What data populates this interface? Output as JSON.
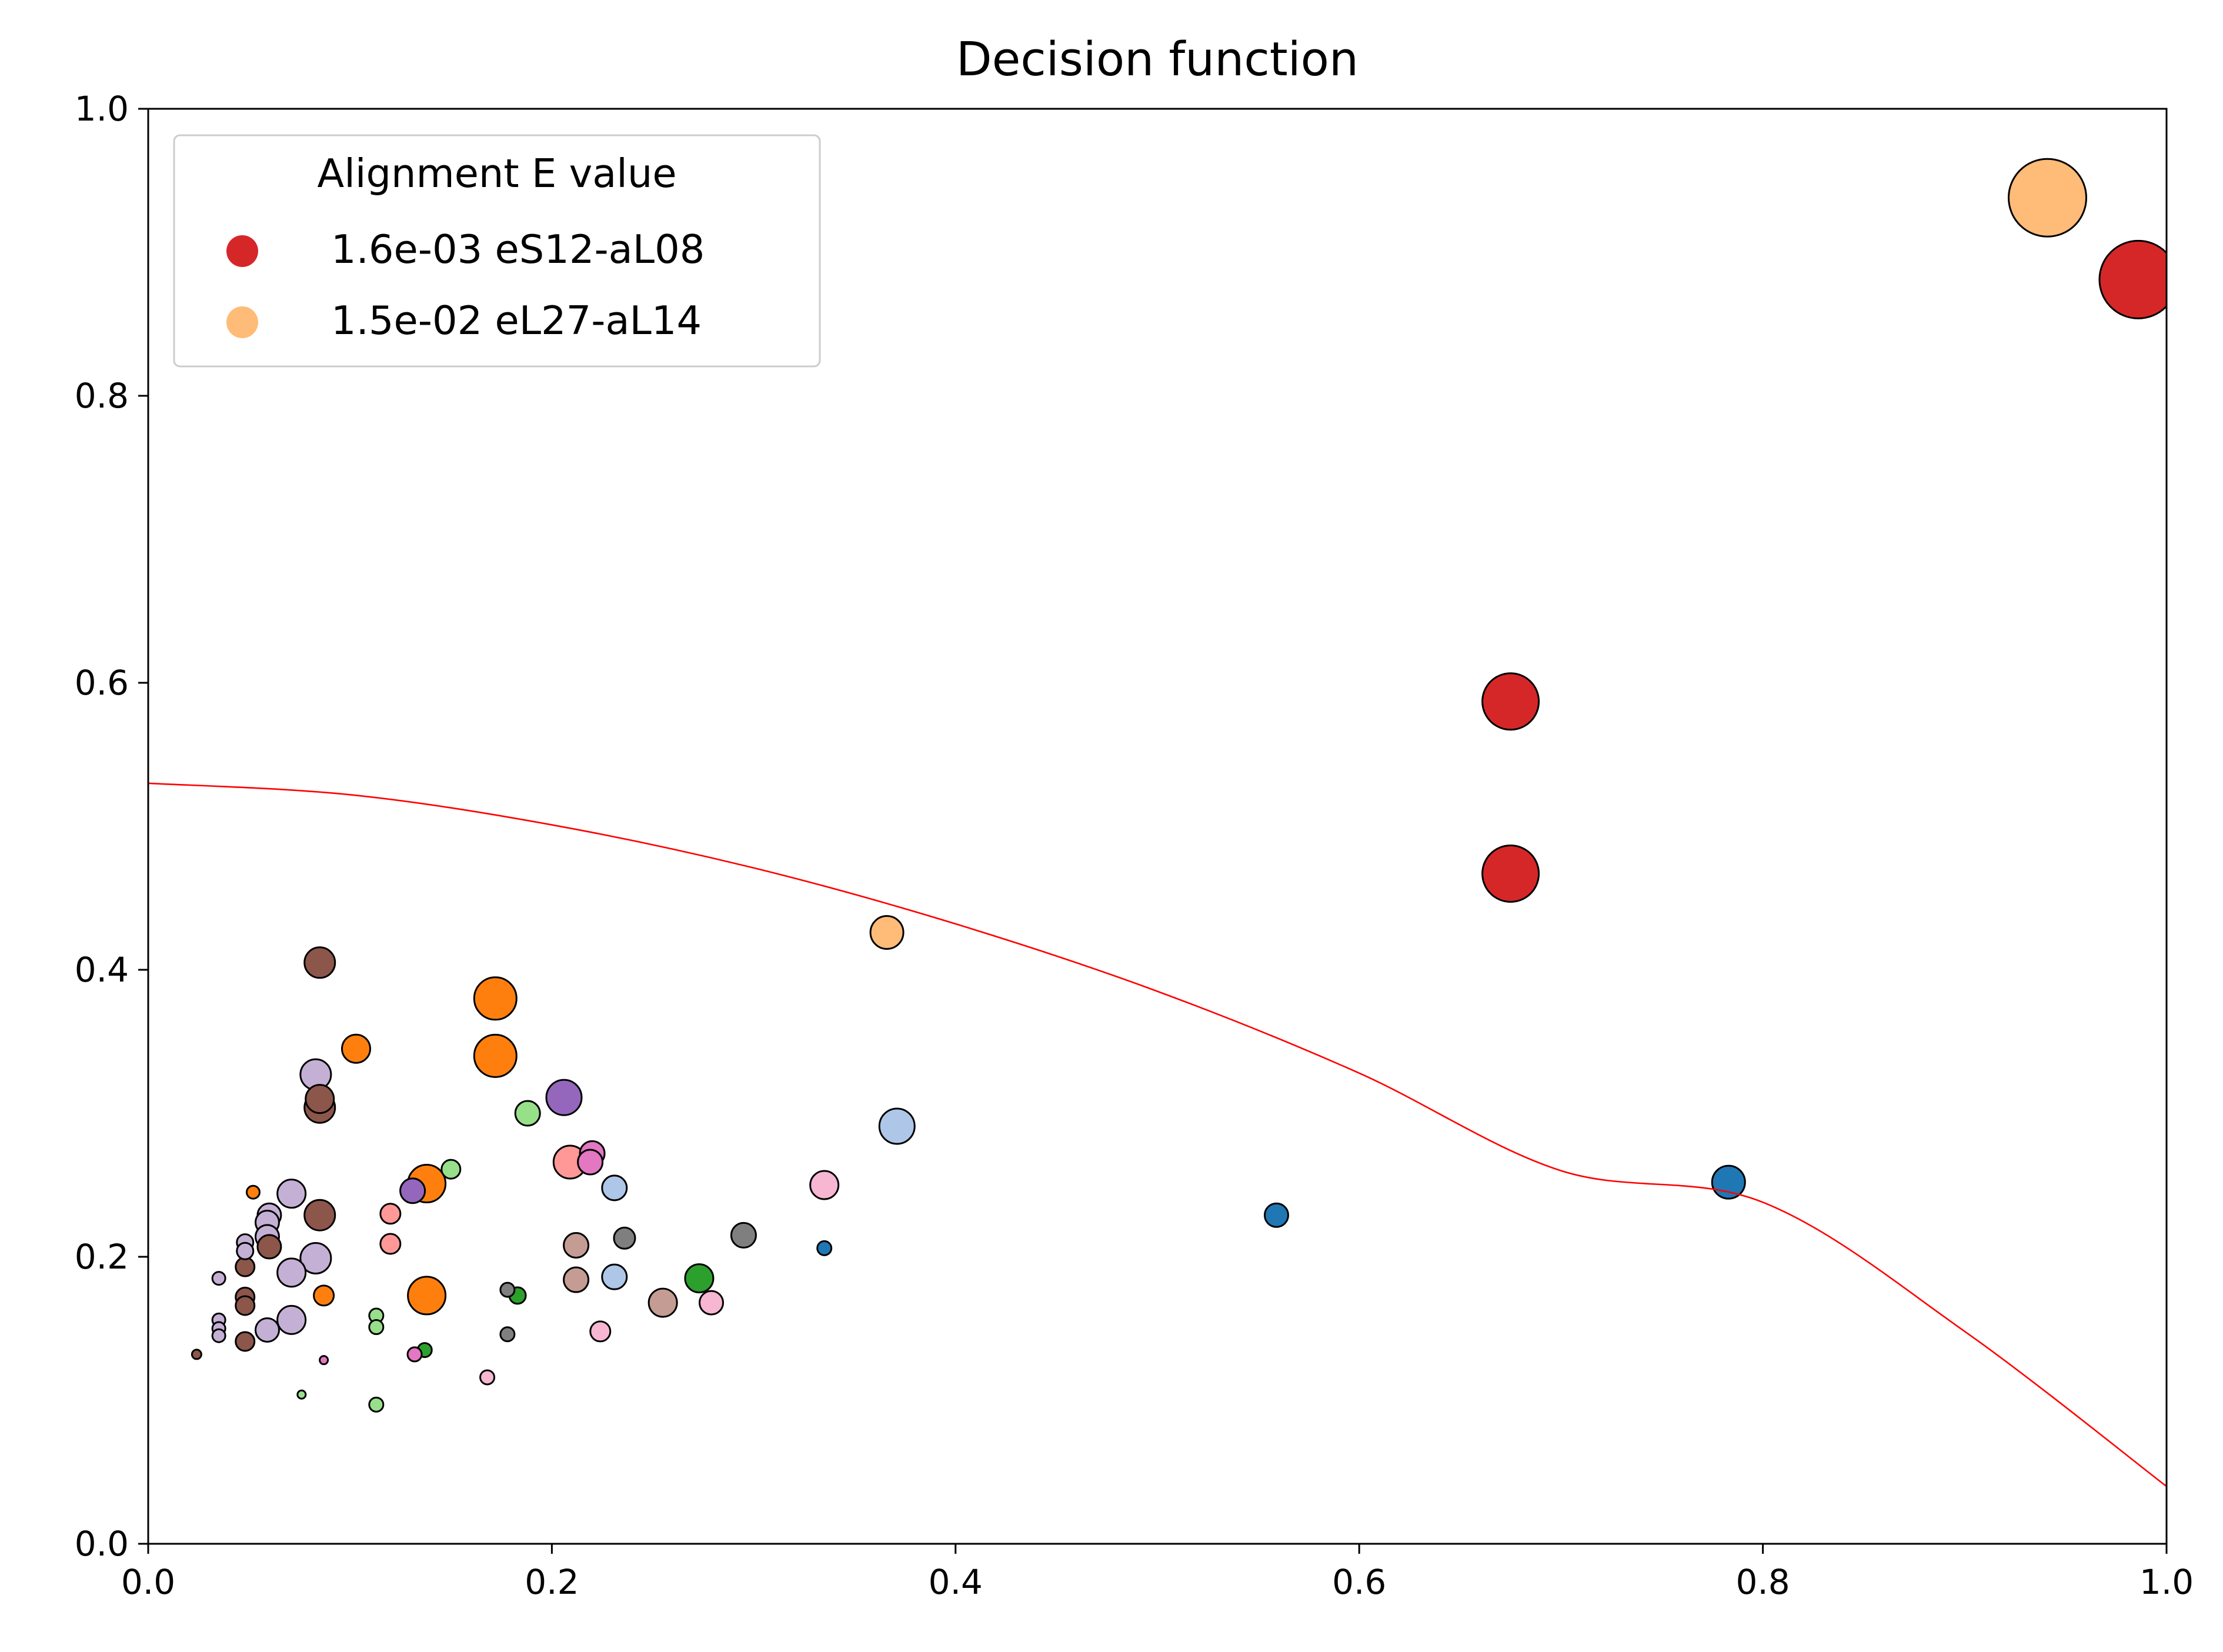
{
  "chart_data": {
    "type": "scatter",
    "title": "Decision function",
    "xlabel": "",
    "ylabel": "",
    "xlim": [
      0.0,
      1.0
    ],
    "ylim": [
      0.0,
      1.0
    ],
    "x_ticks": [
      "0.0",
      "0.2",
      "0.4",
      "0.6",
      "0.8",
      "1.0"
    ],
    "y_ticks": [
      "0.0",
      "0.2",
      "0.4",
      "0.6",
      "0.8",
      "1.0"
    ],
    "grid": false,
    "legend": {
      "title": "Alignment E value",
      "placement": "top-left",
      "entries": [
        {
          "label": "1.6e-03 eS12-aL08",
          "color": "#d62728"
        },
        {
          "label": "1.5e-02 eL27-aL14",
          "color": "#ffbb78"
        }
      ]
    },
    "decision_boundary": {
      "color": "#ff0000",
      "points": [
        [
          0.0,
          0.53
        ],
        [
          0.1,
          0.522
        ],
        [
          0.2,
          0.501
        ],
        [
          0.3,
          0.471
        ],
        [
          0.4,
          0.432
        ],
        [
          0.5,
          0.385
        ],
        [
          0.6,
          0.328
        ],
        [
          0.7,
          0.26
        ],
        [
          0.8,
          0.238
        ],
        [
          0.9,
          0.148
        ],
        [
          1.0,
          0.04
        ]
      ]
    },
    "points": [
      {
        "x": 0.986,
        "y": 0.881,
        "size": 6.6,
        "color": "#d62728"
      },
      {
        "x": 0.941,
        "y": 0.938,
        "size": 6.6,
        "color": "#ffbb78"
      },
      {
        "x": 0.675,
        "y": 0.587,
        "size": 4.8,
        "color": "#d62728"
      },
      {
        "x": 0.675,
        "y": 0.467,
        "size": 4.8,
        "color": "#d62728"
      },
      {
        "x": 0.366,
        "y": 0.426,
        "size": 2.8,
        "color": "#ffbb78"
      },
      {
        "x": 0.371,
        "y": 0.291,
        "size": 3.0,
        "color": "#aec7e8"
      },
      {
        "x": 0.783,
        "y": 0.252,
        "size": 2.8,
        "color": "#1f77b4"
      },
      {
        "x": 0.559,
        "y": 0.229,
        "size": 2.0,
        "color": "#1f77b4"
      },
      {
        "x": 0.335,
        "y": 0.206,
        "size": 1.2,
        "color": "#1f77b4"
      },
      {
        "x": 0.335,
        "y": 0.25,
        "size": 2.4,
        "color": "#f7b6d2"
      },
      {
        "x": 0.295,
        "y": 0.215,
        "size": 2.1,
        "color": "#7f7f7f"
      },
      {
        "x": 0.273,
        "y": 0.185,
        "size": 2.4,
        "color": "#2ca02c"
      },
      {
        "x": 0.279,
        "y": 0.168,
        "size": 2.0,
        "color": "#f7b6d2"
      },
      {
        "x": 0.255,
        "y": 0.168,
        "size": 2.4,
        "color": "#c49c94"
      },
      {
        "x": 0.236,
        "y": 0.213,
        "size": 1.8,
        "color": "#7f7f7f"
      },
      {
        "x": 0.231,
        "y": 0.248,
        "size": 2.1,
        "color": "#aec7e8"
      },
      {
        "x": 0.231,
        "y": 0.186,
        "size": 2.1,
        "color": "#aec7e8"
      },
      {
        "x": 0.224,
        "y": 0.148,
        "size": 1.7,
        "color": "#f7b6d2"
      },
      {
        "x": 0.212,
        "y": 0.208,
        "size": 2.1,
        "color": "#c49c94"
      },
      {
        "x": 0.212,
        "y": 0.184,
        "size": 2.1,
        "color": "#c49c94"
      },
      {
        "x": 0.22,
        "y": 0.272,
        "size": 2.1,
        "color": "#e377c2"
      },
      {
        "x": 0.219,
        "y": 0.266,
        "size": 2.1,
        "color": "#e377c2"
      },
      {
        "x": 0.209,
        "y": 0.266,
        "size": 2.8,
        "color": "#ff9896"
      },
      {
        "x": 0.206,
        "y": 0.311,
        "size": 3.0,
        "color": "#9467bd"
      },
      {
        "x": 0.188,
        "y": 0.3,
        "size": 2.1,
        "color": "#98df8a"
      },
      {
        "x": 0.183,
        "y": 0.173,
        "size": 1.4,
        "color": "#2ca02c"
      },
      {
        "x": 0.178,
        "y": 0.177,
        "size": 1.2,
        "color": "#7f7f7f"
      },
      {
        "x": 0.178,
        "y": 0.146,
        "size": 1.2,
        "color": "#7f7f7f"
      },
      {
        "x": 0.172,
        "y": 0.38,
        "size": 3.6,
        "color": "#ff7f0e"
      },
      {
        "x": 0.172,
        "y": 0.34,
        "size": 3.6,
        "color": "#ff7f0e"
      },
      {
        "x": 0.168,
        "y": 0.116,
        "size": 1.2,
        "color": "#f7b6d2"
      },
      {
        "x": 0.15,
        "y": 0.261,
        "size": 1.6,
        "color": "#98df8a"
      },
      {
        "x": 0.138,
        "y": 0.251,
        "size": 3.2,
        "color": "#ff7f0e"
      },
      {
        "x": 0.138,
        "y": 0.173,
        "size": 3.2,
        "color": "#ff7f0e"
      },
      {
        "x": 0.137,
        "y": 0.135,
        "size": 1.2,
        "color": "#2ca02c"
      },
      {
        "x": 0.131,
        "y": 0.246,
        "size": 2.1,
        "color": "#9467bd"
      },
      {
        "x": 0.132,
        "y": 0.132,
        "size": 1.2,
        "color": "#e377c2"
      },
      {
        "x": 0.12,
        "y": 0.23,
        "size": 1.7,
        "color": "#ff9896"
      },
      {
        "x": 0.12,
        "y": 0.209,
        "size": 1.7,
        "color": "#ff9896"
      },
      {
        "x": 0.113,
        "y": 0.159,
        "size": 1.2,
        "color": "#98df8a"
      },
      {
        "x": 0.113,
        "y": 0.151,
        "size": 1.2,
        "color": "#98df8a"
      },
      {
        "x": 0.113,
        "y": 0.097,
        "size": 1.2,
        "color": "#98df8a"
      },
      {
        "x": 0.103,
        "y": 0.345,
        "size": 2.4,
        "color": "#ff7f0e"
      },
      {
        "x": 0.085,
        "y": 0.405,
        "size": 2.6,
        "color": "#8c564b"
      },
      {
        "x": 0.083,
        "y": 0.327,
        "size": 2.6,
        "color": "#c5b0d5"
      },
      {
        "x": 0.085,
        "y": 0.31,
        "size": 2.4,
        "color": "#8c564b"
      },
      {
        "x": 0.085,
        "y": 0.304,
        "size": 2.6,
        "color": "#8c564b"
      },
      {
        "x": 0.085,
        "y": 0.229,
        "size": 2.6,
        "color": "#8c564b"
      },
      {
        "x": 0.083,
        "y": 0.199,
        "size": 2.6,
        "color": "#c5b0d5"
      },
      {
        "x": 0.087,
        "y": 0.173,
        "size": 1.7,
        "color": "#ff7f0e"
      },
      {
        "x": 0.087,
        "y": 0.128,
        "size": 0.7,
        "color": "#e377c2"
      },
      {
        "x": 0.076,
        "y": 0.104,
        "size": 0.7,
        "color": "#98df8a"
      },
      {
        "x": 0.071,
        "y": 0.244,
        "size": 2.4,
        "color": "#c5b0d5"
      },
      {
        "x": 0.071,
        "y": 0.189,
        "size": 2.4,
        "color": "#c5b0d5"
      },
      {
        "x": 0.071,
        "y": 0.156,
        "size": 2.4,
        "color": "#c5b0d5"
      },
      {
        "x": 0.06,
        "y": 0.229,
        "size": 2.0,
        "color": "#c5b0d5"
      },
      {
        "x": 0.059,
        "y": 0.224,
        "size": 2.0,
        "color": "#c5b0d5"
      },
      {
        "x": 0.059,
        "y": 0.214,
        "size": 2.0,
        "color": "#c5b0d5"
      },
      {
        "x": 0.06,
        "y": 0.207,
        "size": 2.0,
        "color": "#8c564b"
      },
      {
        "x": 0.059,
        "y": 0.149,
        "size": 2.0,
        "color": "#c5b0d5"
      },
      {
        "x": 0.052,
        "y": 0.245,
        "size": 1.1,
        "color": "#ff7f0e"
      },
      {
        "x": 0.048,
        "y": 0.21,
        "size": 1.4,
        "color": "#c5b0d5"
      },
      {
        "x": 0.048,
        "y": 0.204,
        "size": 1.4,
        "color": "#c5b0d5"
      },
      {
        "x": 0.048,
        "y": 0.193,
        "size": 1.6,
        "color": "#8c564b"
      },
      {
        "x": 0.048,
        "y": 0.172,
        "size": 1.6,
        "color": "#8c564b"
      },
      {
        "x": 0.048,
        "y": 0.166,
        "size": 1.6,
        "color": "#8c564b"
      },
      {
        "x": 0.048,
        "y": 0.141,
        "size": 1.6,
        "color": "#8c564b"
      },
      {
        "x": 0.035,
        "y": 0.185,
        "size": 1.1,
        "color": "#c5b0d5"
      },
      {
        "x": 0.035,
        "y": 0.156,
        "size": 1.1,
        "color": "#c5b0d5"
      },
      {
        "x": 0.035,
        "y": 0.15,
        "size": 1.1,
        "color": "#c5b0d5"
      },
      {
        "x": 0.035,
        "y": 0.145,
        "size": 1.1,
        "color": "#c5b0d5"
      },
      {
        "x": 0.024,
        "y": 0.132,
        "size": 0.8,
        "color": "#8c564b"
      }
    ]
  }
}
